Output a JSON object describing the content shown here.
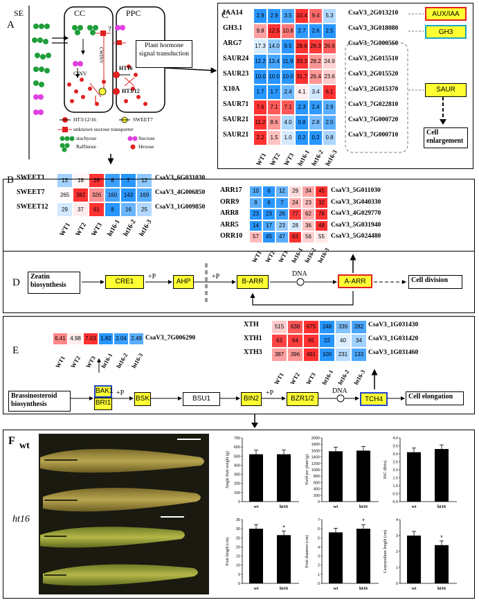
{
  "panel_a": {
    "letter": "A",
    "se_label": "SE",
    "cc_label": "CC",
    "ppc_label": "PPC",
    "question_mark": "?",
    "cwinv_label": "CWINV",
    "cinv_label": "CINV",
    "ht16_label": "HT16",
    "ht3_label": "HT3/12",
    "signal_box": "Plant hormone signal transduction",
    "legend": [
      {
        "label": "HT3/12/16",
        "icon": "red-transporter-icon"
      },
      {
        "label": "SWEET7",
        "icon": "yellow-transporter-icon"
      },
      {
        "label": "unknown sucrose transporter",
        "icon": "red-square-transporter-icon"
      },
      {
        "label": "stachyose",
        "icon": "green-chain-icon"
      },
      {
        "label": "Sucrose",
        "icon": "magenta-pair-icon"
      },
      {
        "label": "Raffinose",
        "icon": "green-triple-icon"
      },
      {
        "label": "Hexose",
        "icon": "red-dot-icon"
      }
    ]
  },
  "panel_b": {
    "letter": "B",
    "columns": [
      "WT1",
      "WT2",
      "WT3",
      "ht16-1",
      "ht16-2",
      "ht16-3"
    ],
    "rows": [
      {
        "gene": "SWEET1",
        "values": [
          "13",
          "18",
          "28",
          "8",
          "7",
          "12"
        ],
        "id": "CsaV3_6G031030"
      },
      {
        "gene": "SWEET7",
        "values": [
          "265",
          "382",
          "326",
          "160",
          "143",
          "169"
        ],
        "id": "CsaV3_4G006850"
      },
      {
        "gene": "SWEET12",
        "values": [
          "29",
          "37",
          "61",
          "8",
          "16",
          "25"
        ],
        "id": "CsaV3_1G009850"
      }
    ]
  },
  "panel_c": {
    "letter": "C",
    "columns": [
      "WT1",
      "WT2",
      "WT3",
      "ht16-1",
      "ht16-2",
      "ht16-3"
    ],
    "rows": [
      {
        "gene": "IAA14",
        "values": [
          "2.9",
          "2.9",
          "3.5",
          "10.4",
          "9.4",
          "5.3"
        ],
        "id": "CsaV3_2G013210"
      },
      {
        "gene": "GH3.1",
        "values": [
          "9.8",
          "12.5",
          "10.8",
          "2.7",
          "2.6",
          "2.5"
        ],
        "id": "CsaV3_3G018080"
      },
      {
        "gene": "ARG7",
        "values": [
          "17.3",
          "14.0",
          "9.5",
          "28.6",
          "28.3",
          "26.6"
        ],
        "id": "CsaV3_7G000560"
      },
      {
        "gene": "SAUR24",
        "values": [
          "12.2",
          "13.4",
          "11.9",
          "33.3",
          "28.2",
          "24.9"
        ],
        "id": "CsaV3_2G015510"
      },
      {
        "gene": "SAUR23",
        "values": [
          "10.0",
          "10.0",
          "10.0",
          "31.7",
          "26.4",
          "23.6"
        ],
        "id": "CsaV3_2G015520"
      },
      {
        "gene": "X10A",
        "values": [
          "1.7",
          "1.7",
          "2.4",
          "4.1",
          "3.4",
          "6.1"
        ],
        "id": "CsaV3_2G015370"
      },
      {
        "gene": "SAUR71",
        "values": [
          "7.6",
          "7.1",
          "7.1",
          "2.3",
          "2.4",
          "2.9"
        ],
        "id": "CsaV3_7G022810"
      },
      {
        "gene": "SAUR21",
        "values": [
          "11.2",
          "8.6",
          "4.0",
          "0.8",
          "2.8",
          "2.0"
        ],
        "id": "CsaV3_7G000720"
      },
      {
        "gene": "SAUR21",
        "values": [
          "2.2",
          "1.5",
          "1.0",
          "0.2",
          "0.2",
          "0.8"
        ],
        "id": "CsaV3_7G000710"
      }
    ],
    "targets": [
      "AUX/IAA",
      "GH3",
      "SAUR"
    ],
    "outcome": "Cell enlargement"
  },
  "panel_d": {
    "letter": "D",
    "columns": [
      "WT1",
      "WT2",
      "WT3",
      "ht16-1",
      "ht16-2",
      "ht16-3"
    ],
    "rows": [
      {
        "gene": "ARR17",
        "values": [
          "10",
          "6",
          "12",
          "29",
          "34",
          "45"
        ],
        "id": "CsaV3_5G011030"
      },
      {
        "gene": "ORR9",
        "values": [
          "9",
          "6",
          "7",
          "24",
          "23",
          "32"
        ],
        "id": "CsaV3_3G040330"
      },
      {
        "gene": "ARR8",
        "values": [
          "23",
          "23",
          "26",
          "77",
          "62",
          "78"
        ],
        "id": "CsaV3_4G029770"
      },
      {
        "gene": "ARR5",
        "values": [
          "14",
          "17",
          "23",
          "28",
          "36",
          "48"
        ],
        "id": "CsaV3_5G031940"
      },
      {
        "gene": "ORR10",
        "values": [
          "57",
          "45",
          "47",
          "63",
          "56",
          "55"
        ],
        "id": "CsaV3_5G024480"
      }
    ],
    "start": "Zeatin biosynthesis",
    "nodes": [
      "CRE1",
      "AHP",
      "B-ARR",
      "A-ARR"
    ],
    "p1": "+P",
    "p2": "+P",
    "dna": "DNA",
    "outcome": "Cell division"
  },
  "panel_e": {
    "letter": "E",
    "bak1_columns": [
      "WT1",
      "WT2",
      "WT3",
      "ht16-1",
      "ht16-2",
      "ht16-3"
    ],
    "bak1_values": [
      "6.41",
      "4.98",
      "7.63",
      "1.82",
      "2.04",
      "2.49"
    ],
    "bak1_id": "CsaV3_7G006290",
    "xth_rows": [
      {
        "gene": "XTH",
        "values": [
          "515",
          "638",
          "675",
          "248",
          "339",
          "282"
        ],
        "id": "CsaV3_1G031430"
      },
      {
        "gene": "XTH1",
        "values": [
          "63",
          "64",
          "65",
          "22",
          "40",
          "34"
        ],
        "id": "CsaV3_1G031420"
      },
      {
        "gene": "XTH3",
        "values": [
          "387",
          "396",
          "491",
          "100",
          "231",
          "133"
        ],
        "id": "CsaV3_1G031460"
      }
    ],
    "start": "Brassinosteroid biosynthesis",
    "nodes": [
      "BAK1",
      "BRI1",
      "BSK",
      "BSU1",
      "BIN2",
      "BZR1/2",
      "TCH4"
    ],
    "p1": "+P",
    "p2": "+P",
    "dna": "DNA",
    "outcome": "Cell elongation"
  },
  "panel_f": {
    "letter": "F",
    "wt_label": "wt",
    "ht16_label": "ht16",
    "categories": [
      "wt",
      "ht16"
    ]
  },
  "chart_data": [
    {
      "type": "bar",
      "ylabel": "Single fruit weight (g)",
      "categories": [
        "wt",
        "ht16"
      ],
      "values": [
        520,
        520
      ],
      "ylim": [
        0,
        700
      ],
      "yticks": [
        "0",
        "100",
        "200",
        "300",
        "400",
        "500",
        "600",
        "700"
      ],
      "sig": ""
    },
    {
      "type": "bar",
      "ylabel": "Yield per plant (g)",
      "categories": [
        "wt",
        "ht16"
      ],
      "values": [
        1580,
        1600
      ],
      "ylim": [
        0,
        2000
      ],
      "yticks": [
        "0",
        "200",
        "400",
        "600",
        "800",
        "1000",
        "1200",
        "1400",
        "1600",
        "1800",
        "2000"
      ],
      "sig": ""
    },
    {
      "type": "bar",
      "ylabel": "SSC (Brix)",
      "categories": [
        "wt",
        "ht16"
      ],
      "values": [
        3.1,
        3.3
      ],
      "ylim": [
        0,
        4.0
      ],
      "yticks": [
        "0.0",
        "0.5",
        "1.0",
        "1.5",
        "2.0",
        "2.5",
        "3.0",
        "3.5",
        "4.0"
      ],
      "sig": ""
    },
    {
      "type": "bar",
      "ylabel": "Fruit length (cm)",
      "categories": [
        "wt",
        "ht16"
      ],
      "values": [
        30,
        26.5
      ],
      "ylim": [
        0,
        35
      ],
      "yticks": [
        "0",
        "5",
        "10",
        "15",
        "20",
        "25",
        "30",
        "35"
      ],
      "sig": "*"
    },
    {
      "type": "bar",
      "ylabel": "Fruit diameter (cm)",
      "categories": [
        "wt",
        "ht16"
      ],
      "values": [
        5.6,
        6.0
      ],
      "ylim": [
        0,
        7
      ],
      "yticks": [
        "0",
        "1",
        "2",
        "3",
        "4",
        "5",
        "6",
        "7"
      ],
      "sig": "*"
    },
    {
      "type": "bar",
      "ylabel": "Carpopodium length (cm)",
      "categories": [
        "wt",
        "ht16"
      ],
      "values": [
        3.0,
        2.4
      ],
      "ylim": [
        0,
        4
      ],
      "yticks": [
        "0",
        "1",
        "2",
        "3",
        "4"
      ],
      "sig": "*"
    }
  ]
}
